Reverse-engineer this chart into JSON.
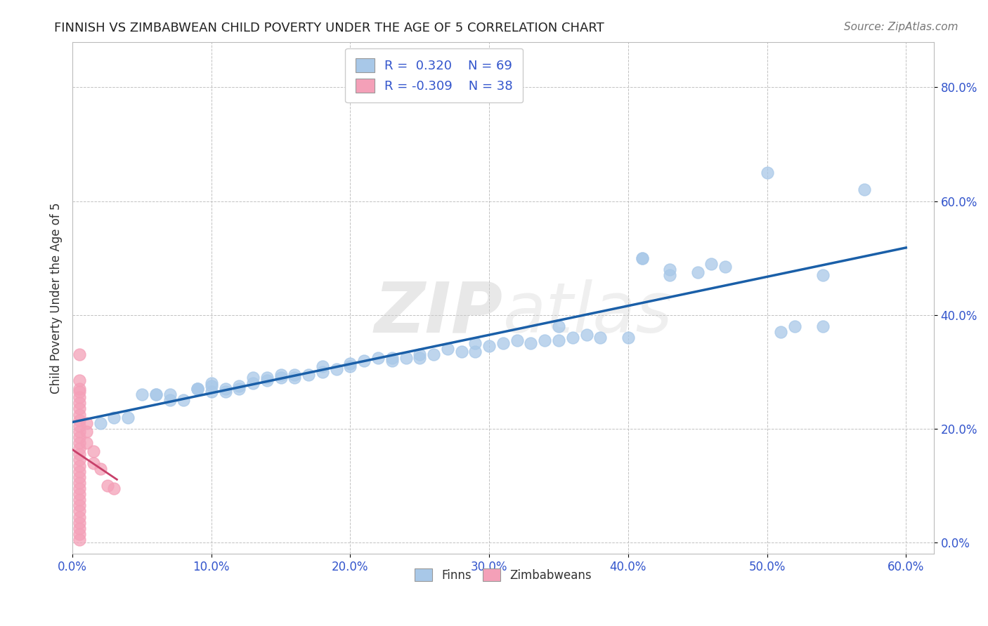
{
  "title": "FINNISH VS ZIMBABWEAN CHILD POVERTY UNDER THE AGE OF 5 CORRELATION CHART",
  "source": "Source: ZipAtlas.com",
  "ylabel": "Child Poverty Under the Age of 5",
  "watermark": "ZIPatlas",
  "legend_r_finns": "0.320",
  "legend_n_finns": "69",
  "legend_r_zimb": "-0.309",
  "legend_n_zimb": "38",
  "finns_color": "#a8c8e8",
  "zimb_color": "#f4a0b8",
  "finns_line_color": "#1a5fa8",
  "zimb_line_color": "#c8406a",
  "background_color": "#ffffff",
  "grid_color": "#bbbbbb",
  "xlim": [
    0.0,
    0.62
  ],
  "ylim": [
    -0.02,
    0.88
  ],
  "finns_scatter": [
    [
      0.02,
      0.21
    ],
    [
      0.03,
      0.22
    ],
    [
      0.04,
      0.22
    ],
    [
      0.05,
      0.26
    ],
    [
      0.06,
      0.26
    ],
    [
      0.06,
      0.26
    ],
    [
      0.07,
      0.25
    ],
    [
      0.07,
      0.26
    ],
    [
      0.08,
      0.25
    ],
    [
      0.09,
      0.27
    ],
    [
      0.09,
      0.27
    ],
    [
      0.09,
      0.27
    ],
    [
      0.1,
      0.265
    ],
    [
      0.1,
      0.28
    ],
    [
      0.1,
      0.275
    ],
    [
      0.11,
      0.265
    ],
    [
      0.11,
      0.27
    ],
    [
      0.12,
      0.27
    ],
    [
      0.12,
      0.275
    ],
    [
      0.13,
      0.28
    ],
    [
      0.13,
      0.29
    ],
    [
      0.14,
      0.285
    ],
    [
      0.14,
      0.29
    ],
    [
      0.15,
      0.29
    ],
    [
      0.15,
      0.295
    ],
    [
      0.16,
      0.29
    ],
    [
      0.16,
      0.295
    ],
    [
      0.17,
      0.295
    ],
    [
      0.18,
      0.3
    ],
    [
      0.18,
      0.31
    ],
    [
      0.19,
      0.305
    ],
    [
      0.2,
      0.31
    ],
    [
      0.2,
      0.315
    ],
    [
      0.21,
      0.32
    ],
    [
      0.22,
      0.325
    ],
    [
      0.23,
      0.32
    ],
    [
      0.23,
      0.325
    ],
    [
      0.24,
      0.325
    ],
    [
      0.25,
      0.33
    ],
    [
      0.25,
      0.325
    ],
    [
      0.26,
      0.33
    ],
    [
      0.27,
      0.34
    ],
    [
      0.28,
      0.335
    ],
    [
      0.29,
      0.335
    ],
    [
      0.29,
      0.35
    ],
    [
      0.3,
      0.345
    ],
    [
      0.31,
      0.35
    ],
    [
      0.32,
      0.355
    ],
    [
      0.33,
      0.35
    ],
    [
      0.34,
      0.355
    ],
    [
      0.35,
      0.355
    ],
    [
      0.35,
      0.38
    ],
    [
      0.36,
      0.36
    ],
    [
      0.37,
      0.365
    ],
    [
      0.38,
      0.36
    ],
    [
      0.4,
      0.36
    ],
    [
      0.41,
      0.5
    ],
    [
      0.41,
      0.5
    ],
    [
      0.43,
      0.47
    ],
    [
      0.43,
      0.48
    ],
    [
      0.45,
      0.475
    ],
    [
      0.46,
      0.49
    ],
    [
      0.47,
      0.485
    ],
    [
      0.5,
      0.65
    ],
    [
      0.51,
      0.37
    ],
    [
      0.52,
      0.38
    ],
    [
      0.54,
      0.38
    ],
    [
      0.54,
      0.47
    ],
    [
      0.57,
      0.62
    ]
  ],
  "zimb_scatter": [
    [
      0.005,
      0.33
    ],
    [
      0.005,
      0.285
    ],
    [
      0.005,
      0.27
    ],
    [
      0.005,
      0.265
    ],
    [
      0.005,
      0.255
    ],
    [
      0.005,
      0.245
    ],
    [
      0.005,
      0.235
    ],
    [
      0.005,
      0.225
    ],
    [
      0.005,
      0.215
    ],
    [
      0.005,
      0.205
    ],
    [
      0.005,
      0.195
    ],
    [
      0.005,
      0.185
    ],
    [
      0.005,
      0.175
    ],
    [
      0.005,
      0.165
    ],
    [
      0.005,
      0.155
    ],
    [
      0.005,
      0.145
    ],
    [
      0.005,
      0.135
    ],
    [
      0.005,
      0.125
    ],
    [
      0.005,
      0.115
    ],
    [
      0.005,
      0.105
    ],
    [
      0.005,
      0.095
    ],
    [
      0.005,
      0.085
    ],
    [
      0.005,
      0.075
    ],
    [
      0.005,
      0.065
    ],
    [
      0.005,
      0.055
    ],
    [
      0.005,
      0.045
    ],
    [
      0.005,
      0.035
    ],
    [
      0.005,
      0.025
    ],
    [
      0.005,
      0.015
    ],
    [
      0.005,
      0.005
    ],
    [
      0.01,
      0.21
    ],
    [
      0.01,
      0.195
    ],
    [
      0.01,
      0.175
    ],
    [
      0.015,
      0.16
    ],
    [
      0.015,
      0.14
    ],
    [
      0.02,
      0.13
    ],
    [
      0.025,
      0.1
    ],
    [
      0.03,
      0.095
    ]
  ]
}
